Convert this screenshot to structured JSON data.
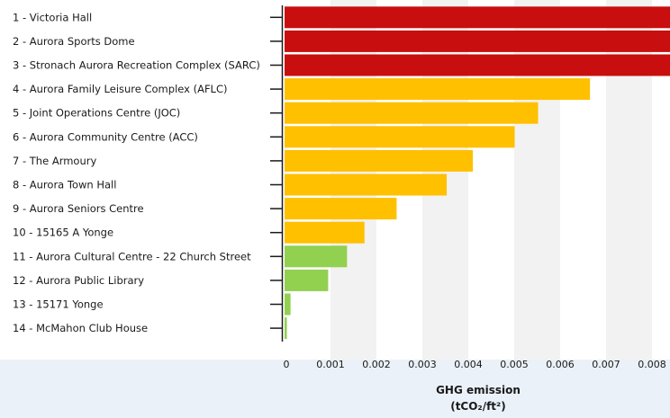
{
  "colors": {
    "high": "#c80e0e",
    "medium": "#ffc000",
    "low": "#92d050",
    "band": "#f2f2f2",
    "page_bg": "#eaf1f8"
  },
  "chart_data": {
    "type": "bar",
    "orientation": "horizontal",
    "categories": [
      "1 - Victoria Hall",
      "2 - Aurora Sports Dome",
      "3 - Stronach Aurora Recreation Complex (SARC)",
      "4 - Aurora Family Leisure Complex (AFLC)",
      "5 - Joint Operations Centre (JOC)",
      "6 - Aurora Community Centre (ACC)",
      "7 - The Armoury",
      "8 - Aurora Town Hall",
      "9 - Aurora Seniors Centre",
      "10 - 15165 A Yonge",
      "11 - Aurora Cultural Centre -  22 Church Street",
      "12 - Aurora Public Library",
      "13 - 15171 Yonge",
      "14 - McMahon Club House"
    ],
    "values": [
      0.0085,
      0.0085,
      0.0085,
      0.00665,
      0.00552,
      0.00501,
      0.0041,
      0.00353,
      0.00244,
      0.00174,
      0.00136,
      0.00095,
      0.00013,
      5e-05
    ],
    "bar_levels": [
      "high",
      "high",
      "high",
      "medium",
      "medium",
      "medium",
      "medium",
      "medium",
      "medium",
      "medium",
      "low",
      "low",
      "low",
      "low"
    ],
    "x_ticks": [
      "0",
      "0.001",
      "0.002",
      "0.003",
      "0.004",
      "0.005",
      "0.006",
      "0.007",
      "0.008",
      "0.009"
    ],
    "xlim": [
      0,
      0.0083
    ],
    "xlabel_line1": "GHG emission",
    "xlabel_line2": "(tCO₂/ft²)",
    "grid": "alternating vertical bands"
  }
}
